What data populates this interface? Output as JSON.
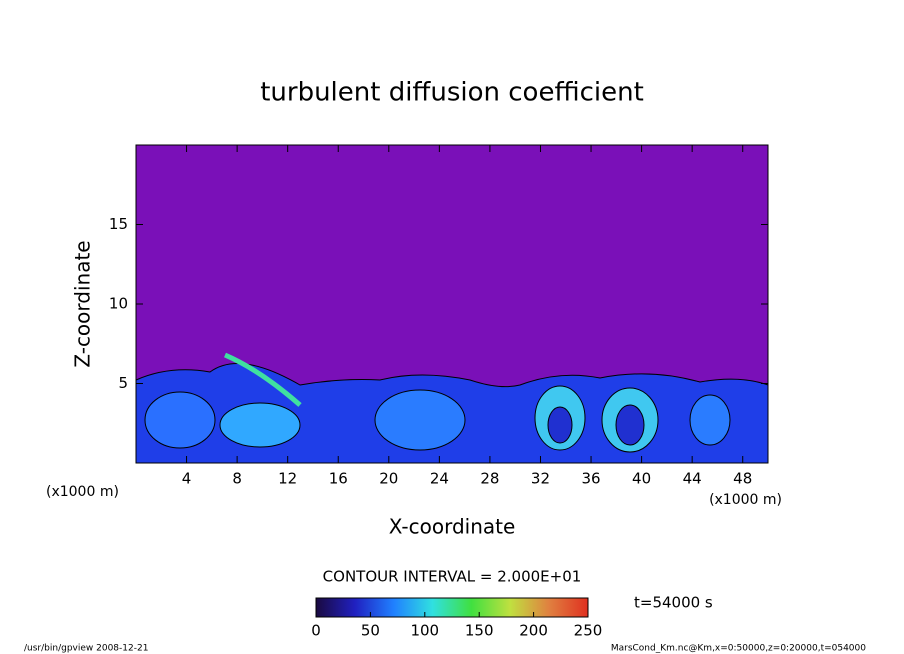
{
  "chart_data": {
    "type": "contour",
    "title": "turbulent diffusion coefficient",
    "xlabel": "X-coordinate",
    "ylabel": "Z-coordinate",
    "x_unit": "(x1000 m)",
    "x_unit_right": "(x1000 m)",
    "xlim": [
      0,
      50
    ],
    "xticks": [
      4,
      8,
      12,
      16,
      20,
      24,
      28,
      32,
      36,
      40,
      44,
      48
    ],
    "ylim": [
      0,
      20
    ],
    "yticks": [
      5,
      10,
      15
    ],
    "contour_interval": "CONTOUR INTERVAL = 2.000E+01",
    "time_label": "t=54000 s",
    "colorbar": {
      "clim": [
        0,
        250
      ],
      "ticks": [
        0,
        50,
        100,
        150,
        200,
        250
      ],
      "colors": [
        "#1a0a40",
        "#2020c0",
        "#2080ff",
        "#30e0e0",
        "#40e040",
        "#c0e040",
        "#e08040",
        "#e03020"
      ]
    },
    "footer_left": "/usr/bin/gpview  2008-12-21",
    "footer_right": "MarsCond_Km.nc@Km,x=0:50000,z=0:20000,t=054000"
  }
}
